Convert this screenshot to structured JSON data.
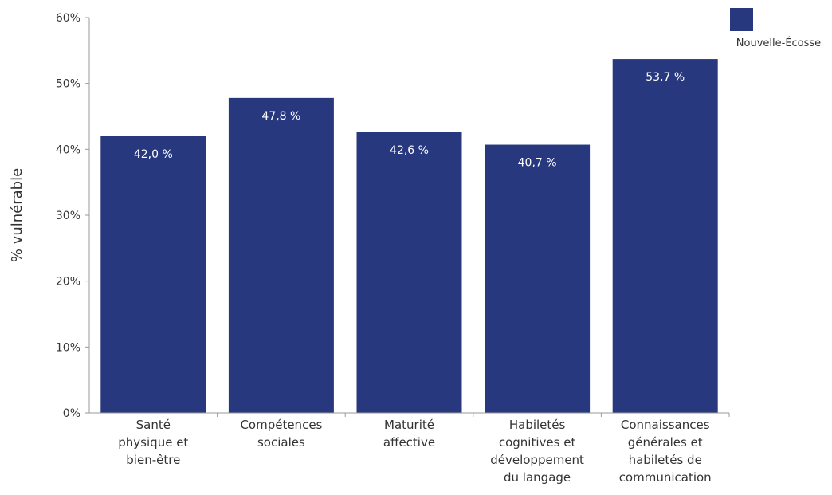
{
  "chart_data": {
    "type": "bar",
    "categories": [
      [
        "Santé",
        "physique et",
        "bien-être"
      ],
      [
        "Compétences",
        "sociales"
      ],
      [
        "Maturité",
        "affective"
      ],
      [
        "Habiletés",
        "cognitives et",
        "développement",
        "du langage"
      ],
      [
        "Connaissances",
        "générales et",
        "habiletés de",
        "communication"
      ]
    ],
    "series": [
      {
        "name": "Nouvelle-Écosse",
        "color": "#27387f",
        "values": [
          42.0,
          47.8,
          42.6,
          40.7,
          53.7
        ],
        "data_labels": [
          "42,0 %",
          "47,8 %",
          "42,6 %",
          "40,7 %",
          "53,7 %"
        ]
      }
    ],
    "ylabel": "% vulnérable",
    "ylim": [
      0,
      60
    ],
    "yticks": [
      0,
      10,
      20,
      30,
      40,
      50,
      60
    ],
    "ytick_labels": [
      "0%",
      "10%",
      "20%",
      "30%",
      "40%",
      "50%",
      "60%"
    ],
    "grid": false,
    "legend_position": "top-right"
  }
}
